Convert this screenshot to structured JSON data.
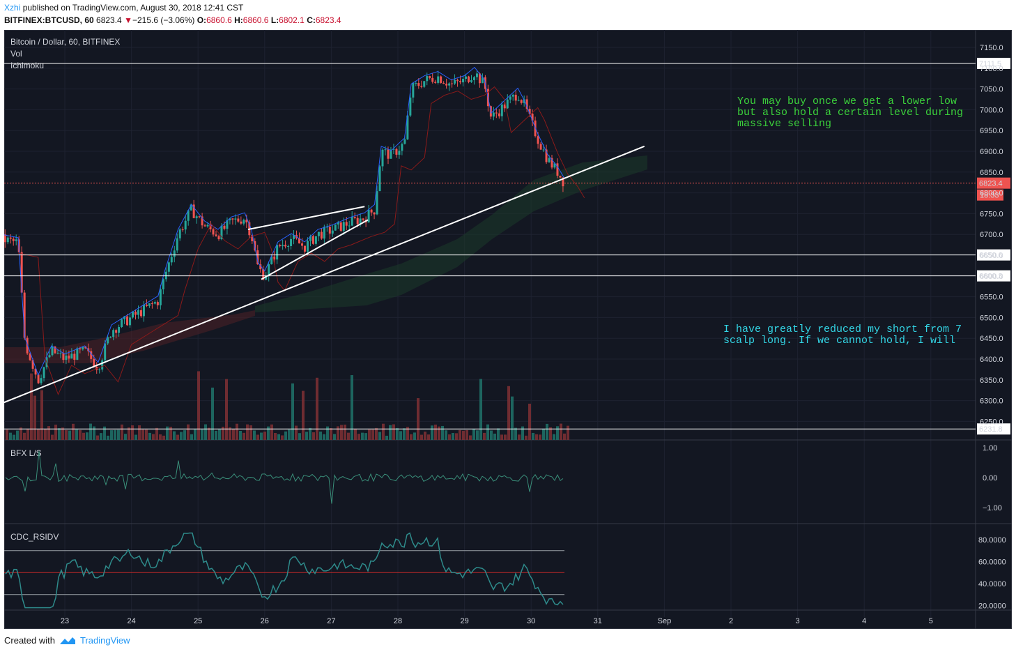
{
  "header": {
    "author": "Xzhi",
    "published_text": "published on TradingView.com, August 30, 2018 12:41 CST",
    "symbol": "BITFINEX:BTCUSD, 60",
    "last": "6823.4",
    "arrow": "▼",
    "change": "−215.6 (−3.06%)",
    "o_label": "O:",
    "o_value": "6860.6",
    "h_label": "H:",
    "h_value": "6860.6",
    "l_label": "L:",
    "l_value": "6802.1",
    "c_label": "C:",
    "c_value": "6823.4"
  },
  "footer": {
    "created_with": "Created with",
    "brand": "TradingView"
  },
  "colors": {
    "background": "#131722",
    "up": "#26a69a",
    "down": "#ef5350",
    "note_green": "#3bd13b",
    "note_cyan": "#33d6e6",
    "price_tag": "#ef5350"
  },
  "chart_data": {
    "type": "candlestick",
    "title": "Bitcoin / Dollar, 60, BITFINEX",
    "indicators": [
      "Vol",
      "Ichimoku"
    ],
    "x_ticks": [
      "23",
      "24",
      "25",
      "26",
      "27",
      "28",
      "29",
      "30",
      "31",
      "Sep",
      "2",
      "3",
      "4",
      "5"
    ],
    "y_ticks": [
      "7150.0",
      "7100.0",
      "7050.0",
      "7000.0",
      "6950.0",
      "6900.0",
      "6850.0",
      "6800.0",
      "6750.0",
      "6700.0",
      "6650.0",
      "6600.0",
      "6550.0",
      "6500.0",
      "6450.0",
      "6400.0",
      "6350.0",
      "6300.0",
      "6250.0"
    ],
    "ylim": [
      6226,
      7175
    ],
    "current_price": {
      "value": 6823.4,
      "label": "6823.4",
      "countdown": "18:33"
    },
    "horizontal_levels": [
      {
        "value": 7111.5,
        "label": "7111.5"
      },
      {
        "value": 6650.6,
        "label": "6650.6"
      },
      {
        "value": 6600.3,
        "label": "6600.3"
      },
      {
        "value": 6231.8,
        "label": "6231.8"
      }
    ],
    "trendlines": [
      {
        "from": {
          "day": 22.0,
          "price": 6290
        },
        "to": {
          "day": 31.7,
          "price": 6912
        }
      },
      {
        "from": {
          "day": 25.75,
          "price": 6712
        },
        "to": {
          "day": 27.5,
          "price": 6767
        }
      },
      {
        "from": {
          "day": 25.95,
          "price": 6592
        },
        "to": {
          "day": 27.55,
          "price": 6735
        }
      }
    ],
    "close_series": [
      {
        "day": 22.0,
        "close": 6690
      },
      {
        "day": 22.3,
        "close": 6680
      },
      {
        "day": 22.4,
        "close": 6440
      },
      {
        "day": 22.6,
        "close": 6350
      },
      {
        "day": 22.8,
        "close": 6420
      },
      {
        "day": 23.0,
        "close": 6400
      },
      {
        "day": 23.3,
        "close": 6420
      },
      {
        "day": 23.5,
        "close": 6380
      },
      {
        "day": 23.7,
        "close": 6470
      },
      {
        "day": 24.0,
        "close": 6500
      },
      {
        "day": 24.2,
        "close": 6520
      },
      {
        "day": 24.4,
        "close": 6540
      },
      {
        "day": 24.5,
        "close": 6600
      },
      {
        "day": 24.7,
        "close": 6700
      },
      {
        "day": 24.9,
        "close": 6760
      },
      {
        "day": 25.1,
        "close": 6720
      },
      {
        "day": 25.3,
        "close": 6700
      },
      {
        "day": 25.5,
        "close": 6730
      },
      {
        "day": 25.7,
        "close": 6740
      },
      {
        "day": 25.8,
        "close": 6700
      },
      {
        "day": 25.9,
        "close": 6620
      },
      {
        "day": 26.0,
        "close": 6600
      },
      {
        "day": 26.2,
        "close": 6670
      },
      {
        "day": 26.4,
        "close": 6690
      },
      {
        "day": 26.6,
        "close": 6670
      },
      {
        "day": 26.8,
        "close": 6700
      },
      {
        "day": 27.0,
        "close": 6710
      },
      {
        "day": 27.3,
        "close": 6730
      },
      {
        "day": 27.5,
        "close": 6740
      },
      {
        "day": 27.65,
        "close": 6760
      },
      {
        "day": 27.75,
        "close": 6900
      },
      {
        "day": 27.9,
        "close": 6890
      },
      {
        "day": 28.1,
        "close": 6920
      },
      {
        "day": 28.2,
        "close": 7050
      },
      {
        "day": 28.4,
        "close": 7070
      },
      {
        "day": 28.6,
        "close": 7080
      },
      {
        "day": 28.8,
        "close": 7060
      },
      {
        "day": 29.0,
        "close": 7070
      },
      {
        "day": 29.15,
        "close": 7090
      },
      {
        "day": 29.3,
        "close": 7060
      },
      {
        "day": 29.4,
        "close": 6980
      },
      {
        "day": 29.6,
        "close": 7010
      },
      {
        "day": 29.8,
        "close": 7040
      },
      {
        "day": 29.9,
        "close": 7010
      },
      {
        "day": 30.0,
        "close": 6970
      },
      {
        "day": 30.1,
        "close": 6930
      },
      {
        "day": 30.25,
        "close": 6880
      },
      {
        "day": 30.4,
        "close": 6850
      },
      {
        "day": 30.5,
        "close": 6823
      }
    ],
    "panes": [
      {
        "name": "BFX L/S",
        "y_ticks": [
          "1.00",
          "0.00",
          "−1.00"
        ]
      },
      {
        "name": "CDC_RSIDV",
        "y_ticks": [
          "80.0000",
          "60.0000",
          "40.0000",
          "20.0000"
        ],
        "levels": [
          70,
          50,
          30
        ]
      }
    ]
  },
  "notes": [
    {
      "lines": [
        "You may buy once we get a lower low",
        "but also hold a certain level during",
        "massive selling"
      ]
    },
    {
      "lines": [
        "I have greatly reduced my short from 7",
        "scalp long. If we cannot hold, I will"
      ]
    }
  ]
}
